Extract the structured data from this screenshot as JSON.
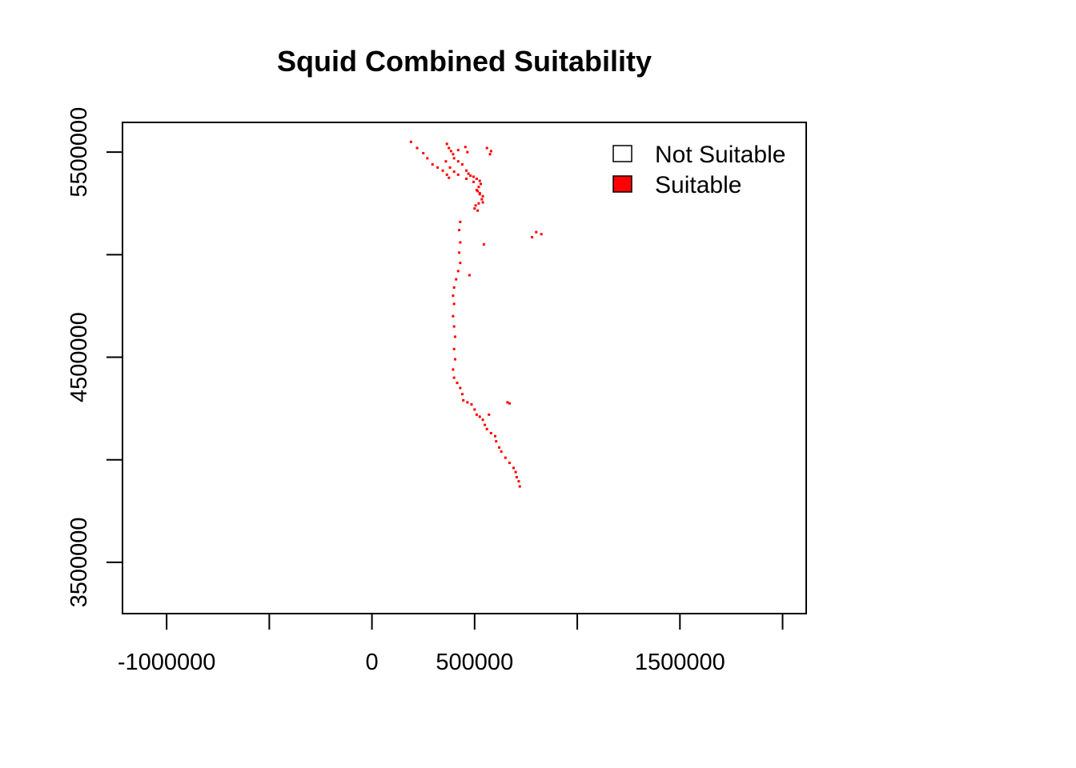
{
  "chart_data": {
    "type": "scatter",
    "title": "Squid Combined Suitability",
    "xlabel": "",
    "ylabel": "",
    "xlim": [
      -1215000,
      2115000
    ],
    "ylim": [
      3250000,
      5645000
    ],
    "x_ticks": [
      -1000000,
      -500000,
      0,
      500000,
      1000000,
      1500000,
      2000000
    ],
    "x_tick_labels": [
      "-1000000",
      "",
      "0",
      "500000",
      "",
      "1500000",
      ""
    ],
    "y_ticks": [
      3500000,
      4000000,
      4500000,
      5000000,
      5500000
    ],
    "y_tick_labels": [
      "3500000",
      "",
      "4500000",
      "",
      "5500000"
    ],
    "legend": {
      "position": "top-right",
      "items": [
        {
          "label": "Not Suitable",
          "color": "#ffffff"
        },
        {
          "label": "Suitable",
          "color": "#ff0000"
        }
      ]
    },
    "series": [
      {
        "name": "Suitable",
        "color": "#ff0000",
        "points": [
          [
            190000,
            5550000
          ],
          [
            220000,
            5520000
          ],
          [
            250000,
            5495000
          ],
          [
            270000,
            5470000
          ],
          [
            295000,
            5440000
          ],
          [
            320000,
            5425000
          ],
          [
            345000,
            5410000
          ],
          [
            365000,
            5390000
          ],
          [
            375000,
            5375000
          ],
          [
            365000,
            5540000
          ],
          [
            375000,
            5520000
          ],
          [
            385000,
            5505000
          ],
          [
            400000,
            5470000
          ],
          [
            420000,
            5455000
          ],
          [
            440000,
            5440000
          ],
          [
            460000,
            5410000
          ],
          [
            470000,
            5395000
          ],
          [
            480000,
            5385000
          ],
          [
            495000,
            5380000
          ],
          [
            510000,
            5370000
          ],
          [
            525000,
            5360000
          ],
          [
            530000,
            5345000
          ],
          [
            520000,
            5330000
          ],
          [
            515000,
            5310000
          ],
          [
            525000,
            5295000
          ],
          [
            540000,
            5285000
          ],
          [
            535000,
            5270000
          ],
          [
            540000,
            5255000
          ],
          [
            520000,
            5250000
          ],
          [
            505000,
            5240000
          ],
          [
            500000,
            5225000
          ],
          [
            515000,
            5215000
          ],
          [
            525000,
            5300000
          ],
          [
            510000,
            5315000
          ],
          [
            495000,
            5355000
          ],
          [
            460000,
            5370000
          ],
          [
            420000,
            5390000
          ],
          [
            400000,
            5405000
          ],
          [
            380000,
            5425000
          ],
          [
            360000,
            5455000
          ],
          [
            395000,
            5490000
          ],
          [
            420000,
            5510000
          ],
          [
            455000,
            5525000
          ],
          [
            465000,
            5500000
          ],
          [
            560000,
            5520000
          ],
          [
            575000,
            5490000
          ],
          [
            580000,
            5505000
          ],
          [
            430000,
            5160000
          ],
          [
            425000,
            5120000
          ],
          [
            430000,
            5060000
          ],
          [
            425000,
            5010000
          ],
          [
            430000,
            4960000
          ],
          [
            420000,
            4920000
          ],
          [
            410000,
            4880000
          ],
          [
            400000,
            4840000
          ],
          [
            395000,
            4800000
          ],
          [
            400000,
            4760000
          ],
          [
            395000,
            4700000
          ],
          [
            400000,
            4650000
          ],
          [
            405000,
            4600000
          ],
          [
            400000,
            4540000
          ],
          [
            405000,
            4490000
          ],
          [
            395000,
            4440000
          ],
          [
            400000,
            4400000
          ],
          [
            415000,
            4375000
          ],
          [
            430000,
            4350000
          ],
          [
            440000,
            4320000
          ],
          [
            445000,
            4290000
          ],
          [
            465000,
            4280000
          ],
          [
            485000,
            4270000
          ],
          [
            500000,
            4245000
          ],
          [
            510000,
            4220000
          ],
          [
            525000,
            4210000
          ],
          [
            540000,
            4195000
          ],
          [
            550000,
            4170000
          ],
          [
            560000,
            4150000
          ],
          [
            580000,
            4130000
          ],
          [
            600000,
            4115000
          ],
          [
            605000,
            4090000
          ],
          [
            620000,
            4060000
          ],
          [
            630000,
            4040000
          ],
          [
            650000,
            4010000
          ],
          [
            670000,
            3985000
          ],
          [
            690000,
            3960000
          ],
          [
            700000,
            3940000
          ],
          [
            705000,
            3915000
          ],
          [
            715000,
            3895000
          ],
          [
            720000,
            3870000
          ],
          [
            475000,
            4900000
          ],
          [
            545000,
            5050000
          ],
          [
            800000,
            5110000
          ],
          [
            825000,
            5100000
          ],
          [
            780000,
            5085000
          ],
          [
            660000,
            4280000
          ],
          [
            670000,
            4275000
          ],
          [
            570000,
            4220000
          ]
        ]
      }
    ]
  }
}
